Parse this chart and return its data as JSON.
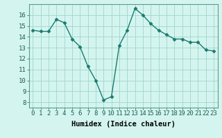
{
  "x": [
    0,
    1,
    2,
    3,
    4,
    5,
    6,
    7,
    8,
    9,
    10,
    11,
    12,
    13,
    14,
    15,
    16,
    17,
    18,
    19,
    20,
    21,
    22,
    23
  ],
  "y": [
    14.6,
    14.5,
    14.5,
    15.6,
    15.3,
    13.8,
    13.1,
    11.3,
    10.0,
    8.2,
    8.5,
    13.2,
    14.6,
    16.6,
    16.0,
    15.2,
    14.6,
    14.2,
    13.8,
    13.8,
    13.5,
    13.5,
    12.8,
    12.7
  ],
  "line_color": "#1a7a6e",
  "marker": "D",
  "markersize": 2.5,
  "linewidth": 1.0,
  "background_color": "#d4f5ef",
  "grid_color": "#a0d4cc",
  "xlabel": "Humidex (Indice chaleur)",
  "tick_fontsize": 6.5,
  "xlabel_fontsize": 7.5,
  "xlim": [
    -0.5,
    23.5
  ],
  "ylim": [
    7.5,
    17.0
  ],
  "yticks": [
    8,
    9,
    10,
    11,
    12,
    13,
    14,
    15,
    16
  ],
  "xticks": [
    0,
    1,
    2,
    3,
    4,
    5,
    6,
    7,
    8,
    9,
    10,
    11,
    12,
    13,
    14,
    15,
    16,
    17,
    18,
    19,
    20,
    21,
    22,
    23
  ]
}
